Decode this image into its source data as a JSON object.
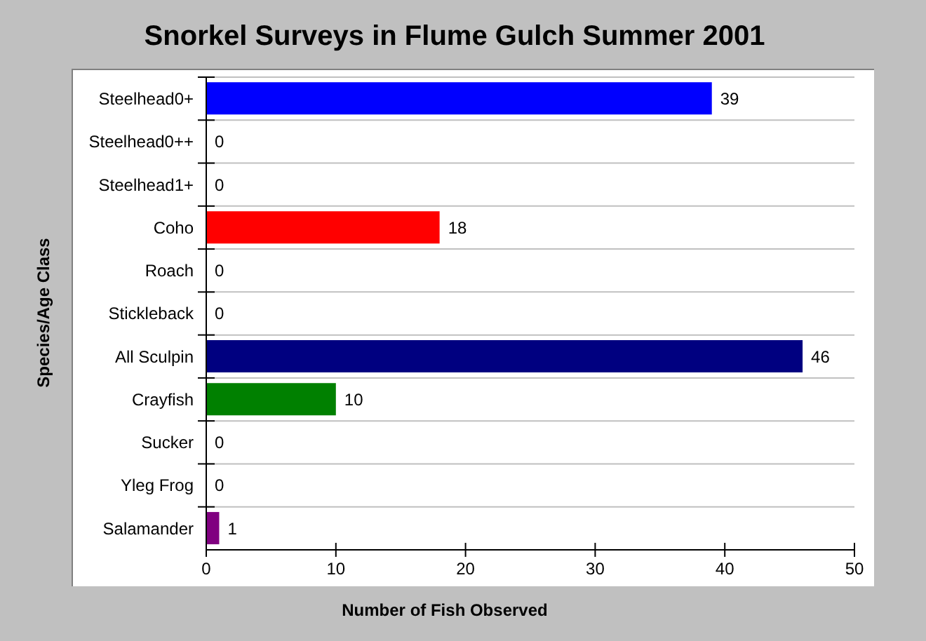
{
  "chart_data": {
    "type": "bar",
    "orientation": "horizontal",
    "title": "Snorkel Surveys in Flume Gulch Summer 2001",
    "xlabel": "Number of Fish Observed",
    "ylabel": "Species/Age Class",
    "categories": [
      "Steelhead0+",
      "Steelhead0++",
      "Steelhead1+",
      "Coho",
      "Roach",
      "Stickleback",
      "All Sculpin",
      "Crayfish",
      "Sucker",
      "Yleg Frog",
      "Salamander"
    ],
    "values": [
      39,
      0,
      0,
      18,
      0,
      0,
      46,
      10,
      0,
      0,
      1
    ],
    "colors": [
      "#0000ff",
      null,
      null,
      "#ff0000",
      null,
      null,
      "#000080",
      "#008000",
      null,
      null,
      "#800080"
    ],
    "xlim": [
      0,
      50
    ],
    "xticks": [
      0,
      10,
      20,
      30,
      40,
      50
    ],
    "grid": "y",
    "data_labels": true
  }
}
